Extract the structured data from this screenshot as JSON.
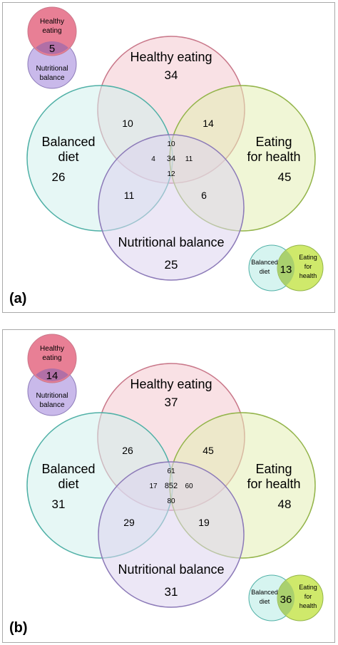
{
  "panels": [
    {
      "id": "a",
      "panel_label": "(a)",
      "sets": {
        "healthy": [
          "Healthy eating"
        ],
        "balanced": [
          "Balanced",
          "diet"
        ],
        "eating": [
          "Eating",
          "for health"
        ],
        "nutritional": [
          "Nutritional balance"
        ]
      },
      "counts": {
        "healthy_only": "34",
        "balanced_only": "26",
        "eating_only": "45",
        "nutritional_only": "25",
        "healthy_balanced": "10",
        "healthy_eating": "14",
        "balanced_nutritional": "11",
        "eating_nutritional": "6",
        "center_top": "10",
        "center_left": "4",
        "center": "34",
        "center_right": "11",
        "center_bottom": "12"
      },
      "mini_top": {
        "label1": [
          "Healthy",
          "eating"
        ],
        "label2": [
          "Nutritional",
          "balance"
        ],
        "count": "5"
      },
      "mini_bottom": {
        "label1": [
          "Balanced",
          "diet"
        ],
        "label2": [
          "Eating",
          "for",
          "health"
        ],
        "count": "13"
      }
    },
    {
      "id": "b",
      "panel_label": "(b)",
      "sets": {
        "healthy": [
          "Healthy eating"
        ],
        "balanced": [
          "Balanced",
          "diet"
        ],
        "eating": [
          "Eating",
          "for health"
        ],
        "nutritional": [
          "Nutritional balance"
        ]
      },
      "counts": {
        "healthy_only": "37",
        "balanced_only": "31",
        "eating_only": "48",
        "nutritional_only": "31",
        "healthy_balanced": "26",
        "healthy_eating": "45",
        "balanced_nutritional": "29",
        "eating_nutritional": "19",
        "center_top": "61",
        "center_left": "17",
        "center": "852",
        "center_right": "60",
        "center_bottom": "80"
      },
      "mini_top": {
        "label1": [
          "Healthy",
          "eating"
        ],
        "label2": [
          "Nutritional",
          "balance"
        ],
        "count": "14"
      },
      "mini_bottom": {
        "label1": [
          "Balanced",
          "diet"
        ],
        "label2": [
          "Eating",
          "for",
          "health"
        ],
        "count": "36"
      }
    }
  ],
  "colors": {
    "healthy_fill": "#f4c8d0",
    "healthy_stroke": "#c9788a",
    "balanced_fill": "#d2f0ec",
    "balanced_stroke": "#4fb0a6",
    "eating_fill": "#e4efb4",
    "eating_stroke": "#93b44a",
    "nutritional_fill": "#ddd3ee",
    "nutritional_stroke": "#8c7ab8",
    "mini_healthy_fill": "#e87f95",
    "mini_nutritional_fill": "#c9b9ea",
    "mini_overlap_fill": "#b16fa6",
    "mini_balanced_fill": "#d6f4f0",
    "mini_eating_fill": "#cfe96b",
    "mini_overlap2_fill": "#a9d06e"
  }
}
